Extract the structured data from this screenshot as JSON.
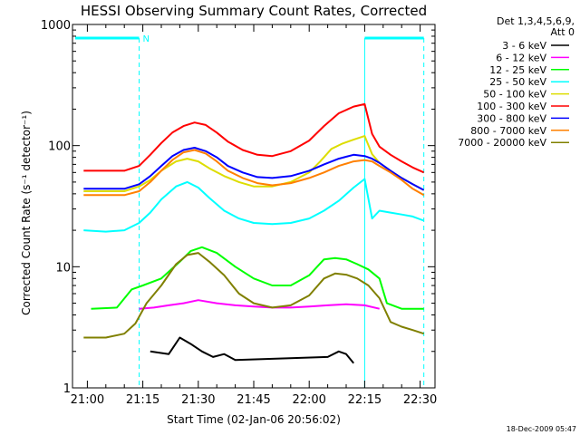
{
  "chart_data": {
    "type": "line",
    "title": "HESSI Observing Summary Count Rates, Corrected",
    "xlabel": "Start Time (02-Jan-06 20:56:02)",
    "ylabel": "Corrected Count Rate (s⁻¹ detector⁻¹)",
    "yscale": "log",
    "ylim": [
      1,
      1000
    ],
    "xlim_minutes": [
      20.933,
      22.567
    ],
    "x_tick_labels": [
      "21:00",
      "21:15",
      "21:30",
      "21:45",
      "22:00",
      "22:15",
      "22:30"
    ],
    "y_tick_labels": [
      "1",
      "10",
      "100",
      "1000"
    ],
    "legend_header": [
      "Det 1,3,4,5,6,9,",
      "Att 0"
    ],
    "timestamp": "18-Dec-2009 05:47",
    "flag_label": "N",
    "grid": false,
    "legend_position": "right",
    "series": [
      {
        "name": "3 - 6 keV",
        "color": "#000000",
        "x": [
          "21:17",
          "21:22",
          "21:25",
          "21:28",
          "21:31",
          "21:34",
          "21:37",
          "21:40",
          "22:05",
          "22:08",
          "22:10",
          "22:12"
        ],
        "y": [
          2.0,
          1.9,
          2.6,
          2.3,
          2.0,
          1.8,
          1.9,
          1.7,
          1.8,
          2.0,
          1.9,
          1.6
        ]
      },
      {
        "name": "6 - 12 keV",
        "color": "#ff00ff",
        "x": [
          "21:14",
          "21:18",
          "21:22",
          "21:26",
          "21:30",
          "21:35",
          "21:40",
          "21:45",
          "21:50",
          "21:55",
          "22:00",
          "22:05",
          "22:10",
          "22:15",
          "22:19"
        ],
        "y": [
          4.5,
          4.6,
          4.8,
          5.0,
          5.3,
          5.0,
          4.8,
          4.7,
          4.6,
          4.6,
          4.7,
          4.8,
          4.9,
          4.8,
          4.5
        ]
      },
      {
        "name": "12 - 25 keV",
        "color": "#00ff00",
        "x": [
          "21:01",
          "21:08",
          "21:12",
          "21:15",
          "21:20",
          "21:25",
          "21:28",
          "21:31",
          "21:35",
          "21:40",
          "21:45",
          "21:50",
          "21:55",
          "22:00",
          "22:04",
          "22:07",
          "22:10",
          "22:13",
          "22:16",
          "22:19",
          "22:21",
          "22:25",
          "22:28",
          "22:31"
        ],
        "y": [
          4.5,
          4.6,
          6.5,
          7.0,
          8.0,
          11.0,
          13.5,
          14.5,
          13.0,
          10.0,
          8.0,
          7.0,
          7.0,
          8.5,
          11.5,
          11.8,
          11.5,
          10.5,
          9.5,
          8.0,
          5.0,
          4.5,
          4.5,
          4.5
        ]
      },
      {
        "name": "25 - 50 keV",
        "color": "#00ffff",
        "x": [
          "20:59",
          "21:05",
          "21:10",
          "21:14",
          "21:17",
          "21:20",
          "21:24",
          "21:27",
          "21:30",
          "21:33",
          "21:37",
          "21:41",
          "21:45",
          "21:50",
          "21:55",
          "22:00",
          "22:04",
          "22:08",
          "22:12",
          "22:15",
          "22:17",
          "22:19",
          "22:22",
          "22:25",
          "22:28",
          "22:31"
        ],
        "y": [
          20,
          19.5,
          20,
          23,
          28,
          36,
          46,
          50,
          45,
          37,
          29,
          25,
          23,
          22.5,
          23,
          25,
          29,
          35,
          45,
          53,
          25,
          29,
          28,
          27,
          26,
          24
        ]
      },
      {
        "name": "50 - 100 keV",
        "color": "#dddd00",
        "x": [
          "20:59",
          "21:10",
          "21:14",
          "21:17",
          "21:20",
          "21:24",
          "21:27",
          "21:30",
          "21:33",
          "21:37",
          "21:41",
          "21:45",
          "21:50",
          "21:55",
          "22:00",
          "22:03",
          "22:06",
          "22:09",
          "22:12",
          "22:15",
          "22:17",
          "22:19",
          "22:22",
          "22:25",
          "22:28",
          "22:31"
        ],
        "y": [
          42,
          42,
          46,
          52,
          62,
          74,
          78,
          74,
          65,
          56,
          50,
          46,
          46,
          50,
          60,
          74,
          94,
          104,
          112,
          120,
          85,
          72,
          62,
          54,
          48,
          43
        ]
      },
      {
        "name": "100 - 300 keV",
        "color": "#ff0000",
        "x": [
          "20:59",
          "21:10",
          "21:14",
          "21:17",
          "21:20",
          "21:23",
          "21:26",
          "21:29",
          "21:32",
          "21:35",
          "21:38",
          "21:42",
          "21:46",
          "21:50",
          "21:55",
          "22:00",
          "22:04",
          "22:08",
          "22:12",
          "22:15",
          "22:17",
          "22:19",
          "22:22",
          "22:25",
          "22:28",
          "22:31"
        ],
        "y": [
          62,
          62,
          68,
          84,
          105,
          128,
          145,
          155,
          148,
          128,
          108,
          92,
          84,
          82,
          90,
          110,
          145,
          185,
          210,
          220,
          125,
          98,
          84,
          74,
          66,
          60
        ]
      },
      {
        "name": "300 - 800 keV",
        "color": "#0000ff",
        "x": [
          "20:59",
          "21:10",
          "21:14",
          "21:17",
          "21:20",
          "21:23",
          "21:26",
          "21:29",
          "21:32",
          "21:35",
          "21:38",
          "21:42",
          "21:46",
          "21:50",
          "21:55",
          "22:00",
          "22:04",
          "22:08",
          "22:12",
          "22:15",
          "22:17",
          "22:19",
          "22:22",
          "22:25",
          "22:28",
          "22:31"
        ],
        "y": [
          44,
          44,
          48,
          56,
          68,
          82,
          92,
          96,
          90,
          80,
          68,
          60,
          55,
          54,
          56,
          62,
          70,
          78,
          84,
          82,
          78,
          72,
          62,
          54,
          48,
          43
        ]
      },
      {
        "name": "800 - 7000 keV",
        "color": "#ff8000",
        "x": [
          "20:59",
          "21:10",
          "21:14",
          "21:17",
          "21:20",
          "21:23",
          "21:26",
          "21:29",
          "21:32",
          "21:35",
          "21:38",
          "21:42",
          "21:46",
          "21:50",
          "21:55",
          "22:00",
          "22:04",
          "22:08",
          "22:12",
          "22:15",
          "22:17",
          "22:19",
          "22:22",
          "22:25",
          "22:28",
          "22:31"
        ],
        "y": [
          39,
          39,
          42,
          50,
          62,
          76,
          88,
          92,
          86,
          74,
          62,
          54,
          49,
          47,
          49,
          54,
          60,
          68,
          74,
          76,
          74,
          68,
          60,
          52,
          44,
          39
        ]
      },
      {
        "name": "7000 - 20000 keV",
        "color": "#808000",
        "x": [
          "20:59",
          "21:05",
          "21:10",
          "21:13",
          "21:16",
          "21:20",
          "21:24",
          "21:27",
          "21:30",
          "21:33",
          "21:37",
          "21:41",
          "21:45",
          "21:50",
          "21:55",
          "22:00",
          "22:04",
          "22:07",
          "22:10",
          "22:13",
          "22:16",
          "22:19",
          "22:22",
          "22:25",
          "22:28",
          "22:31"
        ],
        "y": [
          2.6,
          2.6,
          2.8,
          3.4,
          5.0,
          7.0,
          10.5,
          12.5,
          13.0,
          11.0,
          8.5,
          6.0,
          5.0,
          4.6,
          4.8,
          5.8,
          8.0,
          8.8,
          8.6,
          8.0,
          7.0,
          5.5,
          3.5,
          3.2,
          3.0,
          2.8
        ]
      }
    ]
  }
}
